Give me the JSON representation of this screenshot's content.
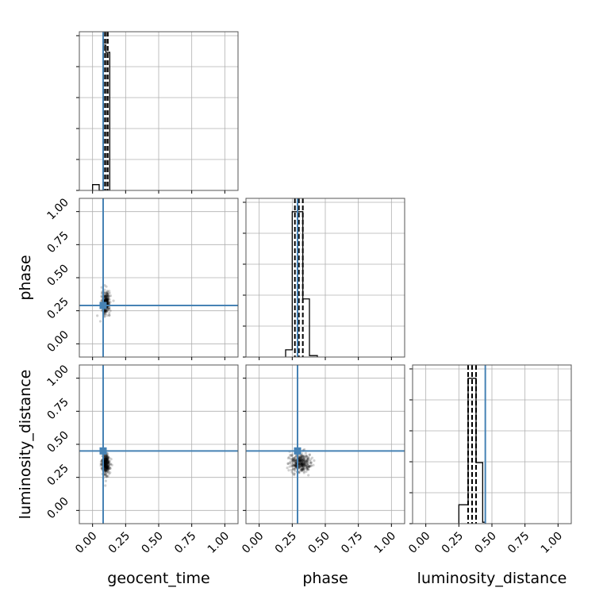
{
  "chart_data": {
    "type": "corner",
    "parameters": [
      "geocent_time",
      "phase",
      "luminosity_distance"
    ],
    "axis_range": [
      -0.1,
      1.1
    ],
    "ticks": [
      0.0,
      0.25,
      0.5,
      0.75,
      1.0
    ],
    "tick_labels": [
      "0.00",
      "0.25",
      "0.50",
      "0.75",
      "1.00"
    ],
    "grid": true,
    "truth_color": "#4682b4",
    "truths": {
      "geocent_time": 0.08,
      "phase": 0.29,
      "luminosity_distance": 0.45
    },
    "posteriors": [
      {
        "name": "geocent_time",
        "quantiles": [
          0.085,
          0.1,
          0.115
        ],
        "histogram": {
          "bin_edges": [
            0.0,
            0.05,
            0.08,
            0.1,
            0.13
          ],
          "heights": [
            0.04,
            0.0,
            1.0,
            0.95
          ]
        }
      },
      {
        "name": "phase",
        "quantiles": [
          0.27,
          0.3,
          0.33
        ],
        "histogram": {
          "bin_edges": [
            0.2,
            0.25,
            0.28,
            0.33,
            0.38,
            0.44
          ],
          "heights": [
            0.05,
            1.0,
            1.0,
            0.4,
            0.01
          ]
        }
      },
      {
        "name": "luminosity_distance",
        "quantiles": [
          0.32,
          0.35,
          0.38
        ],
        "histogram": {
          "bin_edges": [
            0.25,
            0.32,
            0.35,
            0.38,
            0.43,
            0.45
          ],
          "heights": [
            0.13,
            1.0,
            1.0,
            0.42,
            0.01
          ]
        }
      }
    ],
    "pairs": [
      {
        "x": "geocent_time",
        "y": "phase",
        "center": [
          0.1,
          0.31
        ],
        "spread": [
          0.015,
          0.04
        ]
      },
      {
        "x": "geocent_time",
        "y": "luminosity_distance",
        "center": [
          0.1,
          0.35
        ],
        "spread": [
          0.015,
          0.04
        ]
      },
      {
        "x": "phase",
        "y": "luminosity_distance",
        "center": [
          0.31,
          0.36
        ],
        "spread": [
          0.04,
          0.035
        ]
      }
    ]
  }
}
